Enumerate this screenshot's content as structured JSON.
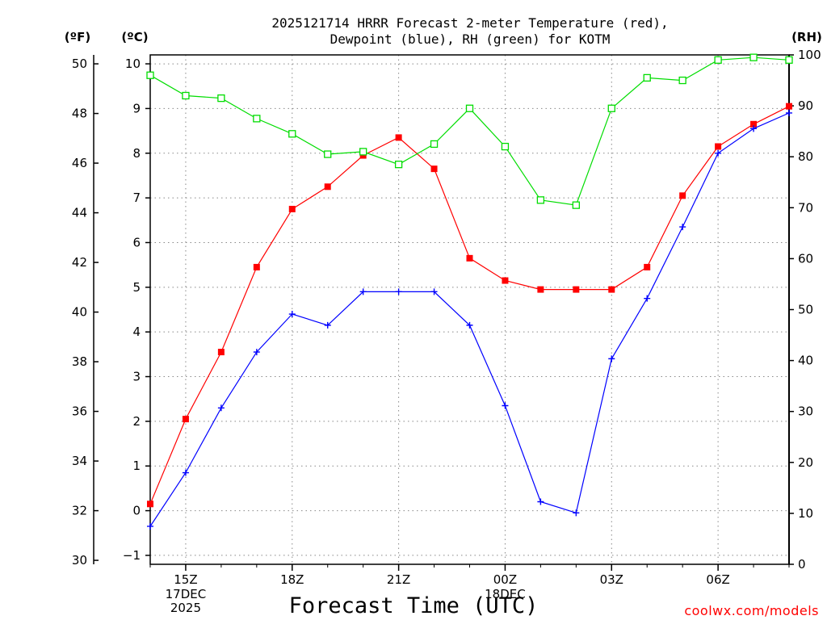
{
  "chart_data": {
    "type": "line",
    "title_line1": "2025121714 HRRR Forecast 2-meter Temperature (red),",
    "title_line2": "Dewpoint (blue), RH (green) for KOTM",
    "xlabel": "Forecast Time (UTC)",
    "credit": "coolwx.com/models",
    "unit_left_f": "(ºF)",
    "unit_left_c": "(ºC)",
    "unit_right": "(RH)",
    "x_hours": [
      14,
      15,
      16,
      17,
      18,
      19,
      20,
      21,
      22,
      23,
      0,
      1,
      2,
      3,
      4,
      5,
      6,
      7,
      8
    ],
    "x_ticks": [
      {
        "index": 1,
        "label": "15Z",
        "sub": [
          "17DEC",
          "2025"
        ]
      },
      {
        "index": 4,
        "label": "18Z",
        "sub": []
      },
      {
        "index": 7,
        "label": "21Z",
        "sub": []
      },
      {
        "index": 10,
        "label": "00Z",
        "sub": [
          "18DEC"
        ]
      },
      {
        "index": 13,
        "label": "03Z",
        "sub": []
      },
      {
        "index": 16,
        "label": "06Z",
        "sub": []
      }
    ],
    "y_celsius": {
      "range": [
        -1.2,
        10.2
      ],
      "ticks": [
        -1,
        0,
        1,
        2,
        3,
        4,
        5,
        6,
        7,
        8,
        9,
        10
      ]
    },
    "y_fahrenheit": {
      "ticks": [
        30,
        32,
        34,
        36,
        38,
        40,
        42,
        44,
        46,
        48,
        50
      ]
    },
    "y_rh": {
      "range": [
        0,
        100
      ],
      "ticks": [
        0,
        10,
        20,
        30,
        40,
        50,
        60,
        70,
        80,
        90,
        100
      ]
    },
    "series": [
      {
        "name": "2-meter Temperature",
        "unit": "C",
        "color": "#ff0000",
        "marker": "filled-square",
        "values": [
          0.15,
          2.05,
          3.55,
          5.45,
          6.75,
          7.25,
          7.95,
          8.35,
          7.65,
          5.65,
          5.15,
          4.95,
          4.95,
          4.95,
          5.45,
          7.05,
          8.15,
          8.65,
          9.05
        ]
      },
      {
        "name": "Dewpoint",
        "unit": "C",
        "color": "#0000ff",
        "marker": "plus",
        "values": [
          -0.35,
          0.85,
          2.3,
          3.55,
          4.4,
          4.15,
          4.9,
          4.9,
          4.9,
          4.15,
          2.35,
          0.2,
          -0.05,
          3.4,
          4.75,
          6.35,
          8.0,
          8.55,
          8.9
        ]
      },
      {
        "name": "RH",
        "unit": "%",
        "color": "#00dd00",
        "marker": "open-square",
        "values": [
          96,
          92,
          91.5,
          87.5,
          84.5,
          80.5,
          81,
          78.5,
          82.5,
          89.5,
          82,
          71.5,
          70.5,
          89.5,
          95.5,
          95,
          99,
          99.5,
          99
        ]
      }
    ]
  }
}
